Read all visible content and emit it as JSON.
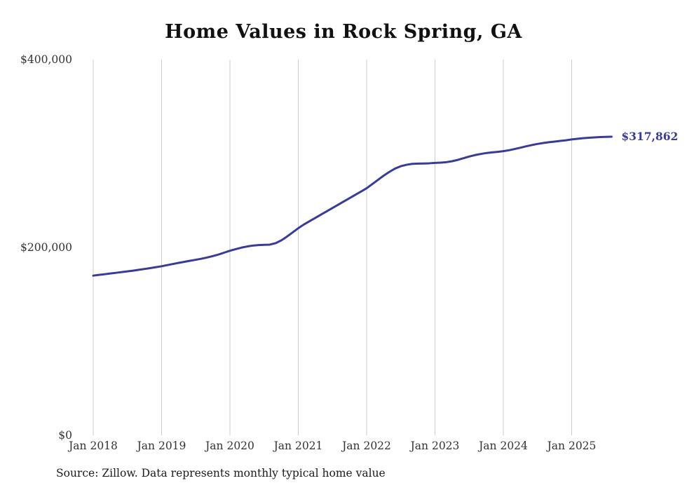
{
  "title": "Home Values in Rock Spring, GA",
  "source_note": "Source: Zillow. Data represents monthly typical home value",
  "colors": {
    "line": "#3a3a9d",
    "grid": "#cccccc",
    "tick_text": "#333333",
    "title_text": "#111111",
    "annotation_text": "#3a3a9d"
  },
  "chart_data": {
    "type": "line",
    "title": "Home Values in Rock Spring, GA",
    "xlabel": "",
    "ylabel": "",
    "ylim": [
      0,
      400000
    ],
    "yticks": [
      {
        "value": 0,
        "label": "$0"
      },
      {
        "value": 200000,
        "label": "$200,000"
      },
      {
        "value": 400000,
        "label": "$400,000"
      }
    ],
    "xticks": [
      {
        "month_index": 0,
        "label": "Jan 2018"
      },
      {
        "month_index": 12,
        "label": "Jan 2019"
      },
      {
        "month_index": 24,
        "label": "Jan 2020"
      },
      {
        "month_index": 36,
        "label": "Jan 2021"
      },
      {
        "month_index": 48,
        "label": "Jan 2022"
      },
      {
        "month_index": 60,
        "label": "Jan 2023"
      },
      {
        "month_index": 72,
        "label": "Jan 2024"
      },
      {
        "month_index": 84,
        "label": "Jan 2025"
      }
    ],
    "grid": "vertical-only",
    "legend": "none",
    "annotation": {
      "text": "$317,862",
      "value": 317862
    },
    "series": [
      {
        "name": "Monthly typical home value",
        "start": "Jan 2018",
        "end": "Aug 2025",
        "values": [
          170000,
          170800,
          171500,
          172300,
          173000,
          173800,
          174500,
          175300,
          176200,
          177100,
          178000,
          179000,
          180000,
          181200,
          182400,
          183600,
          184700,
          185800,
          186900,
          188000,
          189300,
          190800,
          192500,
          194500,
          196500,
          198200,
          199800,
          201000,
          202000,
          202500,
          202800,
          203000,
          204500,
          207500,
          211500,
          216000,
          220500,
          224500,
          228000,
          231500,
          235000,
          238500,
          242000,
          245500,
          249000,
          252500,
          256000,
          259500,
          263000,
          267500,
          272000,
          276500,
          280500,
          284000,
          286500,
          288000,
          289000,
          289300,
          289400,
          289600,
          290000,
          290300,
          290800,
          291800,
          293200,
          295000,
          296800,
          298300,
          299500,
          300500,
          301200,
          301800,
          302500,
          303500,
          304800,
          306200,
          307700,
          309000,
          310200,
          311200,
          312000,
          312700,
          313400,
          314100,
          315000,
          315700,
          316300,
          316800,
          317200,
          317500,
          317700,
          317862
        ]
      }
    ]
  }
}
